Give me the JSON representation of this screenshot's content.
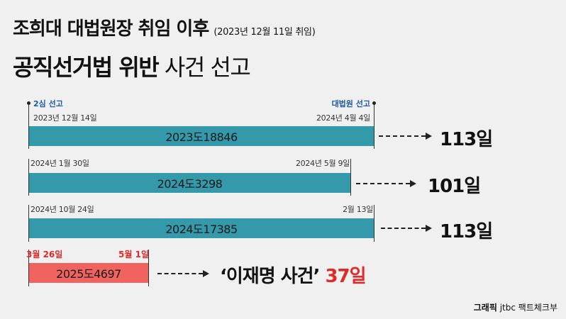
{
  "title": {
    "line1": "조희대 대법원장 취임 이후",
    "line1_note": "(2023년 12월 11일 취임)",
    "line2_bold": "공직선거법 위반",
    "line2_light": "사건 선고"
  },
  "rows": [
    {
      "start_label": "2심 선고",
      "end_label": "대법원 선고",
      "start_date": "2023년 12월 14일",
      "end_date": "2024년 4월 4일",
      "case": "2023도18846",
      "days": "113일"
    },
    {
      "start_date": "2024년 1월 30일",
      "end_date": "2024년 5월 9일",
      "case": "2024도3298",
      "days": "101일"
    },
    {
      "start_date": "2024년 10월 24일",
      "end_date": "2월 13일",
      "case": "2024도17385",
      "days": "113일"
    },
    {
      "start_date": "3월 26일",
      "end_date": "5월 1일",
      "case": "2025도4697",
      "result_label": "‘이재명 사건’",
      "days": "37일"
    }
  ],
  "credit": {
    "label": "그래픽",
    "source": "jtbc 팩트체크부"
  },
  "colors": {
    "bar": "#3399ab",
    "highlight_bar": "#f0635e",
    "highlight_text": "#e02a2a",
    "label_blue": "#1e5aa8",
    "background": "#f0f0f0"
  }
}
